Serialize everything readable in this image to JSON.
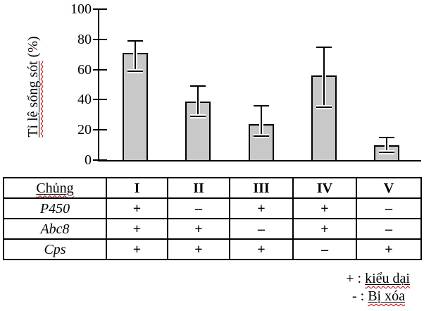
{
  "chart_data": {
    "type": "bar",
    "categories": [
      "I",
      "II",
      "III",
      "IV",
      "V"
    ],
    "values": [
      71,
      39,
      24,
      56,
      10
    ],
    "error_low": [
      59,
      29,
      16,
      35,
      5
    ],
    "error_high": [
      79,
      49,
      36,
      75,
      15
    ],
    "title": "",
    "xlabel": "",
    "ylabel": "Tỉ lệ sống sót (%)",
    "ylabel_underlined_part": "Tỉ lệ sống sót",
    "ylabel_suffix": " (%)",
    "yticks": [
      0,
      20,
      40,
      60,
      80,
      100
    ],
    "ylim": [
      0,
      100
    ],
    "grid": false,
    "legend_position": "none",
    "bar_color": "#c8c8c8",
    "bar_border_color": "#000000",
    "wavy_underline_color": "#c00000"
  },
  "table": {
    "header_label": "Chủng",
    "header_columns": [
      "I",
      "II",
      "III",
      "IV",
      "V"
    ],
    "rows": [
      {
        "label": "P450",
        "values": [
          "+",
          "–",
          "+",
          "+",
          "–"
        ]
      },
      {
        "label": "Abc8",
        "values": [
          "+",
          "+",
          "–",
          "+",
          "–"
        ]
      },
      {
        "label": "Cps",
        "values": [
          "+",
          "+",
          "+",
          "–",
          "+"
        ]
      }
    ]
  },
  "legend": {
    "plus_symbol": "+ :",
    "plus_label": "kiểu dại",
    "minus_symbol": "- :",
    "minus_label": "Bị xóa"
  }
}
